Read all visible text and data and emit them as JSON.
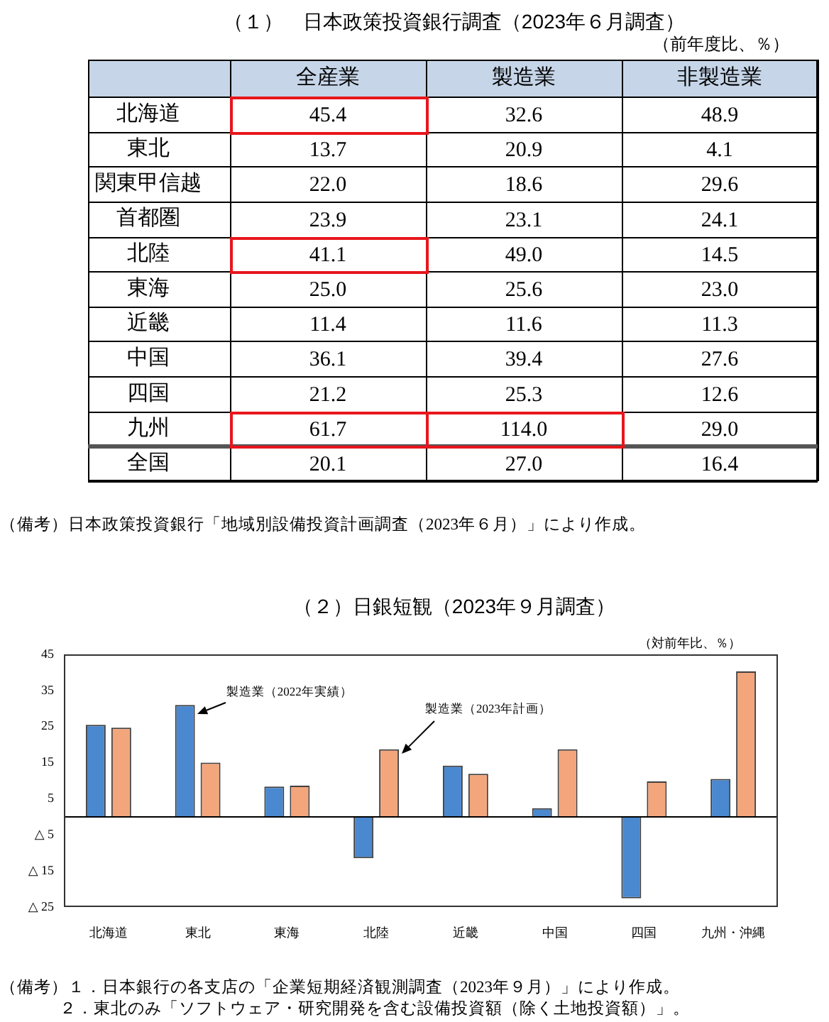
{
  "chart_data": [
    {
      "type": "heatmap",
      "title": "（１）　日本政策投資銀行調査（2023年６月調査）",
      "subtitle": "（前年度比、％）",
      "categories": [
        "全産業",
        "製造業",
        "非製造業"
      ],
      "y_categories": [
        "北海道",
        "東北",
        "関東甲信越",
        "首都圏",
        "北陸",
        "東海",
        "近畿",
        "中国",
        "四国",
        "九州",
        "全国"
      ],
      "cells": [
        [
          45.4,
          32.6,
          48.9
        ],
        [
          13.7,
          20.9,
          4.1
        ],
        [
          22.0,
          18.6,
          29.6
        ],
        [
          23.9,
          23.1,
          24.1
        ],
        [
          41.1,
          49.0,
          14.5
        ],
        [
          25.0,
          25.6,
          23.0
        ],
        [
          11.4,
          11.6,
          11.3
        ],
        [
          36.1,
          39.4,
          27.6
        ],
        [
          21.2,
          25.3,
          12.6
        ],
        [
          61.7,
          114.0,
          29.0
        ],
        [
          20.1,
          27.0,
          16.4
        ]
      ],
      "cell_labels": [
        [
          "45.4",
          "32.6",
          "48.9"
        ],
        [
          "13.7",
          "20.9",
          "4.1"
        ],
        [
          "22.0",
          "18.6",
          "29.6"
        ],
        [
          "23.9",
          "23.1",
          "24.1"
        ],
        [
          "41.1",
          "49.0",
          "14.5"
        ],
        [
          "25.0",
          "25.6",
          "23.0"
        ],
        [
          "11.4",
          "11.6",
          "11.3"
        ],
        [
          "36.1",
          "39.4",
          "27.6"
        ],
        [
          "21.2",
          "25.3",
          "12.6"
        ],
        [
          "61.7",
          "114.0",
          "29.0"
        ],
        [
          "20.1",
          "27.0",
          "16.4"
        ]
      ],
      "annotations": [
        "（備考）日本政策投資銀行「地域別設備投資計画調査（2023年６月）」により作成。"
      ]
    },
    {
      "type": "bar",
      "title": "（２）日銀短観（2023年９月調査）",
      "subtitle": "（対前年比、％）",
      "categories": [
        "北海道",
        "東北",
        "東海",
        "北陸",
        "近畿",
        "中国",
        "四国",
        "九州・沖縄"
      ],
      "series": [
        {
          "name": "製造業（2022年実績）",
          "color": "#4a88cf",
          "values": [
            25.5,
            31.0,
            8.4,
            -11.5,
            14.2,
            2.4,
            -22.6,
            10.5
          ]
        },
        {
          "name": "製造業（2023年計画）",
          "color": "#f3a57c",
          "values": [
            24.7,
            15.0,
            8.6,
            18.7,
            11.9,
            18.7,
            9.8,
            40.3
          ]
        }
      ],
      "ylim": [
        -25,
        45
      ],
      "yticks": [
        {
          "value": -25,
          "label": "△ 25"
        },
        {
          "value": -15,
          "label": "△ 15"
        },
        {
          "value": -5,
          "label": "△ 5"
        },
        5,
        15,
        25,
        35,
        45
      ],
      "ref_lines": [
        {
          "axis": "y",
          "value": 0
        }
      ],
      "annotations": [
        "（備考）１．日本銀行の各支店の「企業短期経済観測調査（2023年９月）」により作成。",
        "２．東北のみ「ソフトウェア・研究開発を含む設備投資額（除く土地投資額）」。"
      ]
    }
  ]
}
